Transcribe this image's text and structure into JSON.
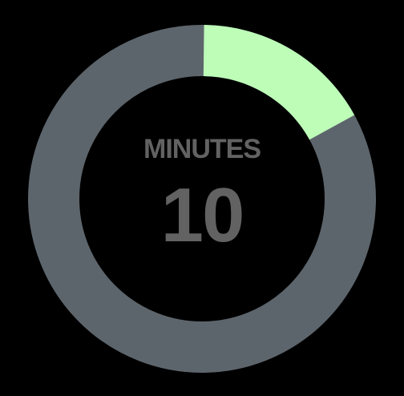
{
  "timer": {
    "label": "MINUTES",
    "value": "10",
    "progress_fraction": 0.17
  },
  "colors": {
    "background": "#000000",
    "track": "#5d656c",
    "progress": "#bdfdb8",
    "text": "#626262"
  }
}
